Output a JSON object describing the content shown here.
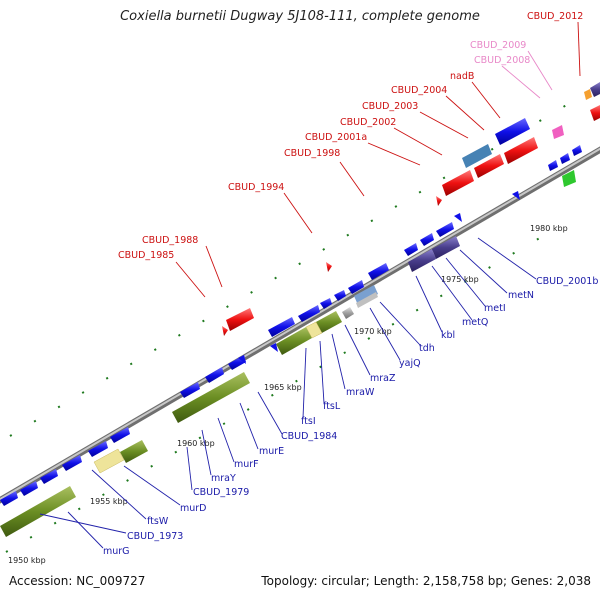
{
  "title": "Coxiella burnetii Dugway 5J108-111, complete genome",
  "footer": {
    "accession": "Accession: NC_009727",
    "topology": "Topology: circular; Length: 2,158,758 bp; Genes: 2,038"
  },
  "colors": {
    "backbone": "#8c8c8c",
    "gene_forward": "#0a0ae6",
    "gene_reverse": "#0a0ae6",
    "gene_red": "#ee1111",
    "operon_green": "#6b8e23",
    "operon_purple": "#483d8b",
    "steel": "#4682b4",
    "pale": "#f0e68c",
    "label_blue": "#1a1aa8",
    "label_red": "#cc1111",
    "label_pink": "#e888c8"
  },
  "kbp_labels": [
    "1950 kbp",
    "1955 kbp",
    "1960 kbp",
    "1965 kbp",
    "1970 kbp",
    "1975 kbp",
    "1980 kbp"
  ],
  "labels_blue": [
    "murG",
    "CBUD_1973",
    "ftsW",
    "murD",
    "CBUD_1979",
    "mraY",
    "murF",
    "murE",
    "CBUD_1984",
    "ftsI",
    "ftsL",
    "mraW",
    "mraZ",
    "yajQ",
    "tdh",
    "kbl",
    "metQ",
    "metI",
    "metN",
    "CBUD_2001b"
  ],
  "labels_red": [
    "CBUD_1985",
    "CBUD_1988",
    "CBUD_1994",
    "CBUD_1998",
    "CBUD_2001a",
    "CBUD_2002",
    "CBUD_2003",
    "CBUD_2004",
    "nadB",
    "CBUD_2012"
  ],
  "labels_pink": [
    "CBUD_2008",
    "CBUD_2009"
  ]
}
